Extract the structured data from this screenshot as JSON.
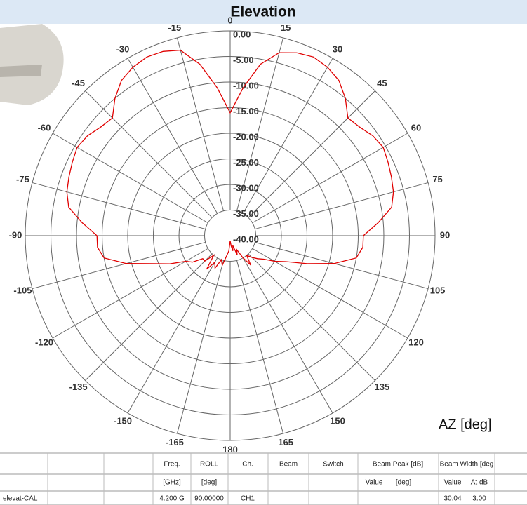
{
  "chart_data": {
    "type": "polar",
    "title": "Elevation",
    "axis_label": "AZ  [deg]",
    "color": "#e00000",
    "theta": [
      -180,
      -175,
      -170,
      -165,
      -160,
      -155,
      -150,
      -145,
      -140,
      -135,
      -130,
      -125,
      -120,
      -115,
      -110,
      -105,
      -100,
      -95,
      -90,
      -85,
      -80,
      -75,
      -70,
      -65,
      -60,
      -55,
      -50,
      -45,
      -40,
      -35,
      -30,
      -25,
      -20,
      -15,
      -10,
      -5,
      0,
      5,
      10,
      15,
      20,
      25,
      30,
      35,
      40,
      45,
      50,
      55,
      60,
      65,
      70,
      75,
      80,
      85,
      90,
      95,
      100,
      105,
      110,
      115,
      120,
      125,
      130,
      135,
      140,
      145,
      150,
      155,
      160,
      165,
      170,
      175,
      180
    ],
    "values": [
      -39,
      -37,
      -36,
      -34,
      -35,
      -33,
      -34,
      -32,
      -35,
      -33,
      -33,
      -31,
      -30,
      -27,
      -24,
      -19,
      -15,
      -14,
      -14,
      -11,
      -8,
      -7,
      -6.5,
      -6,
      -5.5,
      -6,
      -7,
      -7.5,
      -5,
      -3,
      -2,
      -1.5,
      -1.7,
      -2.5,
      -6,
      -11,
      -16,
      -11,
      -6,
      -3,
      -2,
      -1.5,
      -2,
      -3,
      -5,
      -7.5,
      -7,
      -6,
      -5.5,
      -6,
      -6.5,
      -7,
      -8,
      -11,
      -14,
      -14,
      -15,
      -19,
      -24,
      -28,
      -30,
      -32,
      -33,
      -34,
      -35,
      -33,
      -35,
      -37,
      -36,
      -38,
      -37,
      -38,
      -39
    ],
    "rlim": [
      -40,
      0
    ],
    "rticks": [
      {
        "value": 0,
        "label": "0.00"
      },
      {
        "value": -5,
        "label": "-5.00"
      },
      {
        "value": -10,
        "label": "-10.00"
      },
      {
        "value": -15,
        "label": "-15.00"
      },
      {
        "value": -20,
        "label": "-20.00"
      },
      {
        "value": -25,
        "label": "-25.00"
      },
      {
        "value": -30,
        "label": "-30.00"
      },
      {
        "value": -35,
        "label": "-35.00"
      },
      {
        "value": -40,
        "label": "-40.00"
      }
    ],
    "thetaticks": [
      0,
      15,
      30,
      45,
      60,
      75,
      90,
      105,
      120,
      135,
      150,
      165,
      180,
      -165,
      -150,
      -135,
      -120,
      -105,
      -90,
      -75,
      -60,
      -45,
      -30,
      -15
    ]
  },
  "table": {
    "header1": [
      "Freq.",
      "ROLL",
      "Ch.",
      "Beam",
      "Switch",
      "Beam Peak [dB]",
      "Beam Width [deg"
    ],
    "header2": [
      "[GHz]",
      "[deg]",
      "Value",
      "[deg]",
      "Value",
      "At dB"
    ],
    "row": [
      "elevat-CAL",
      "4.200 G",
      "90.00000",
      "CH1",
      "30.04",
      "3.00"
    ]
  }
}
